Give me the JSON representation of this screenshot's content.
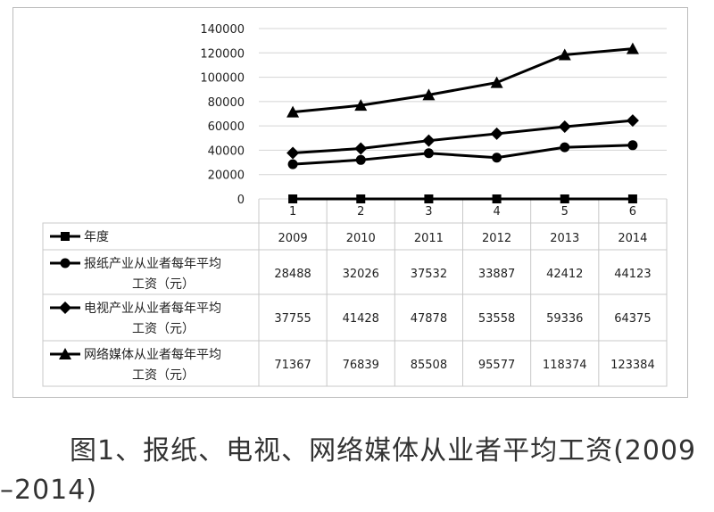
{
  "caption": {
    "line1": "图1、报纸、电视、网络媒体从业者平均工资(2009",
    "line2": "–2014)"
  },
  "chart_data": {
    "type": "line",
    "categories": [
      "1",
      "2",
      "3",
      "4",
      "5",
      "6"
    ],
    "ylim": [
      0,
      140000
    ],
    "yticks": [
      "140000",
      "120000",
      "100000",
      "80000",
      "60000",
      "40000",
      "20000",
      "0"
    ],
    "grid": true,
    "table_headers": [
      "年度",
      "2009",
      "2010",
      "2011",
      "2012",
      "2013",
      "2014"
    ],
    "series": [
      {
        "name": "年度",
        "marker": "square",
        "values": [
          2009,
          2010,
          2011,
          2012,
          2013,
          2014
        ],
        "labels": [
          "2009",
          "2010",
          "2011",
          "2012",
          "2013",
          "2014"
        ]
      },
      {
        "name": "报纸产业从业者每年平均工资（元）",
        "name_lines": [
          "报纸产业从业者每年平均",
          "工资（元）"
        ],
        "marker": "circle",
        "values": [
          28488,
          32026,
          37532,
          33887,
          42412,
          44123
        ],
        "labels": [
          "28488",
          "32026",
          "37532",
          "33887",
          "42412",
          "44123"
        ]
      },
      {
        "name": "电视产业从业者每年平均工资（元）",
        "name_lines": [
          "电视产业从业者每年平均",
          "工资（元）"
        ],
        "marker": "diamond",
        "values": [
          37755,
          41428,
          47878,
          53558,
          59336,
          64375
        ],
        "labels": [
          "37755",
          "41428",
          "47878",
          "53558",
          "59336",
          "64375"
        ]
      },
      {
        "name": "网络媒体从业者每年平均工资（元）",
        "name_lines": [
          "网络媒体从业者每年平均",
          "工资（元）"
        ],
        "marker": "triangle",
        "values": [
          71367,
          76839,
          85508,
          95577,
          118374,
          123384
        ],
        "labels": [
          "71367",
          "76839",
          "85508",
          "95577",
          "118374",
          "123384"
        ]
      }
    ]
  }
}
